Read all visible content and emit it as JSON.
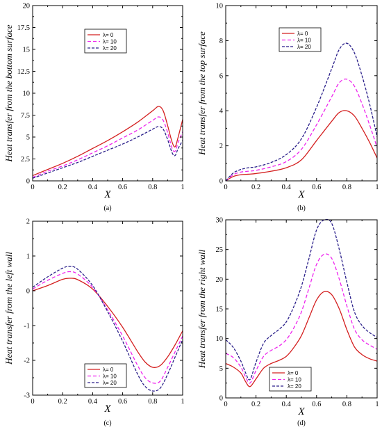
{
  "colors": {
    "lambda0": "#d42020",
    "lambda10": "#ee22ee",
    "lambda20": "#2a1f8a"
  },
  "chart_data": [
    {
      "type": "line",
      "caption": "(a)",
      "xlabel": "X",
      "ylabel": "Heat transfer from the bottom surface",
      "xlim": [
        0,
        1
      ],
      "ylim": [
        0,
        20
      ],
      "xticks": [
        "0",
        "0.2",
        "0.4",
        "0.6",
        "0.8",
        "1"
      ],
      "yticks": [
        "0",
        "2.5",
        "5",
        "7.5",
        "10",
        "12.5",
        "15",
        "17.5",
        "20"
      ],
      "x": [
        0,
        0.1,
        0.2,
        0.3,
        0.4,
        0.5,
        0.6,
        0.7,
        0.8,
        0.84,
        0.87,
        0.9,
        0.93,
        0.95,
        0.97,
        1.0
      ],
      "series": [
        {
          "name": "λ= 0",
          "values": [
            0.6,
            1.3,
            2.0,
            2.8,
            3.7,
            4.6,
            5.6,
            6.7,
            8.0,
            8.5,
            8.0,
            6.3,
            4.4,
            3.9,
            5.0,
            7.0
          ]
        },
        {
          "name": "λ= 10",
          "values": [
            0.4,
            1.1,
            1.7,
            2.4,
            3.2,
            4.0,
            4.9,
            5.8,
            6.9,
            7.3,
            6.9,
            5.5,
            3.7,
            3.4,
            4.4,
            5.6
          ]
        },
        {
          "name": "λ= 20",
          "values": [
            0.3,
            0.9,
            1.5,
            2.1,
            2.8,
            3.5,
            4.2,
            5.0,
            5.9,
            6.2,
            5.9,
            4.7,
            3.2,
            2.9,
            3.7,
            4.6
          ]
        }
      ],
      "legend": "upper-center"
    },
    {
      "type": "line",
      "caption": "(b)",
      "xlabel": "X",
      "ylabel": "Heat transfer from the top surface",
      "xlim": [
        0,
        1
      ],
      "ylim": [
        0,
        10
      ],
      "xticks": [
        "0",
        "0.2",
        "0.4",
        "0.6",
        "0.8",
        "1"
      ],
      "yticks": [
        "0",
        "2",
        "4",
        "6",
        "8",
        "10"
      ],
      "x": [
        0,
        0.05,
        0.1,
        0.15,
        0.2,
        0.3,
        0.4,
        0.5,
        0.6,
        0.7,
        0.75,
        0.8,
        0.85,
        0.9,
        0.95,
        1.0
      ],
      "series": [
        {
          "name": "λ= 0",
          "values": [
            0.0,
            0.25,
            0.35,
            0.38,
            0.42,
            0.55,
            0.75,
            1.2,
            2.3,
            3.4,
            3.9,
            4.0,
            3.7,
            3.0,
            2.2,
            1.3
          ]
        },
        {
          "name": "λ= 10",
          "values": [
            0.0,
            0.35,
            0.5,
            0.55,
            0.6,
            0.8,
            1.1,
            1.8,
            3.2,
            4.8,
            5.6,
            5.8,
            5.4,
            4.4,
            3.2,
            1.9
          ]
        },
        {
          "name": "λ= 20",
          "values": [
            0.0,
            0.45,
            0.65,
            0.75,
            0.8,
            1.05,
            1.5,
            2.4,
            4.2,
            6.4,
            7.5,
            7.85,
            7.3,
            6.0,
            4.4,
            2.5
          ]
        }
      ],
      "legend": "upper-left"
    },
    {
      "type": "line",
      "caption": "(c)",
      "xlabel": "X",
      "ylabel": "Heat transfer from the left wall",
      "xlim": [
        0,
        1
      ],
      "ylim": [
        -3,
        2
      ],
      "xticks": [
        "0",
        "0.2",
        "0.4",
        "0.6",
        "0.8",
        "1"
      ],
      "yticks": [
        "-3",
        "-2",
        "-1",
        "0",
        "1",
        "2"
      ],
      "x": [
        0,
        0.1,
        0.2,
        0.25,
        0.3,
        0.4,
        0.5,
        0.6,
        0.7,
        0.75,
        0.8,
        0.85,
        0.9,
        0.95,
        1.0
      ],
      "series": [
        {
          "name": "λ= 0",
          "values": [
            0.0,
            0.15,
            0.33,
            0.36,
            0.32,
            0.05,
            -0.45,
            -1.05,
            -1.75,
            -2.05,
            -2.2,
            -2.15,
            -1.9,
            -1.55,
            -1.15
          ]
        },
        {
          "name": "λ= 10",
          "values": [
            0.05,
            0.3,
            0.5,
            0.55,
            0.48,
            0.1,
            -0.55,
            -1.3,
            -2.15,
            -2.5,
            -2.65,
            -2.6,
            -2.2,
            -1.75,
            -1.3
          ]
        },
        {
          "name": "λ= 20",
          "values": [
            0.1,
            0.4,
            0.65,
            0.7,
            0.62,
            0.15,
            -0.6,
            -1.45,
            -2.4,
            -2.75,
            -2.88,
            -2.8,
            -2.4,
            -1.9,
            -1.4
          ]
        }
      ],
      "legend": "lower-left"
    },
    {
      "type": "line",
      "caption": "(d)",
      "xlabel": "X",
      "ylabel": "Heat transfer from the right wall",
      "xlim": [
        0,
        1
      ],
      "ylim": [
        0,
        30
      ],
      "xticks": [
        "0",
        "0.2",
        "0.4",
        "0.6",
        "0.8",
        "1"
      ],
      "yticks": [
        "0",
        "5",
        "10",
        "15",
        "20",
        "25",
        "30"
      ],
      "x": [
        0,
        0.05,
        0.1,
        0.13,
        0.16,
        0.2,
        0.25,
        0.3,
        0.35,
        0.4,
        0.45,
        0.5,
        0.55,
        0.6,
        0.65,
        0.7,
        0.75,
        0.8,
        0.85,
        0.9,
        0.95,
        1.0
      ],
      "series": [
        {
          "name": "λ= 0",
          "values": [
            5.8,
            5.2,
            4.2,
            2.8,
            1.9,
            3.2,
            5.0,
            5.8,
            6.3,
            7.0,
            8.5,
            10.5,
            13.5,
            16.5,
            17.9,
            17.4,
            15.0,
            11.5,
            8.6,
            7.3,
            6.6,
            6.2
          ]
        },
        {
          "name": "λ= 10",
          "values": [
            7.5,
            6.8,
            5.2,
            3.6,
            2.5,
            4.6,
            7.0,
            8.0,
            8.7,
            9.8,
            11.8,
            14.5,
            18.5,
            22.5,
            24.2,
            23.5,
            20.0,
            15.5,
            11.6,
            9.8,
            8.9,
            8.2
          ]
        },
        {
          "name": "λ= 20",
          "values": [
            9.8,
            8.5,
            6.2,
            4.3,
            3.1,
            6.0,
            9.2,
            10.5,
            11.5,
            12.8,
            15.4,
            18.8,
            23.5,
            28.3,
            30.0,
            29.4,
            25.0,
            19.5,
            14.5,
            12.2,
            11.0,
            10.2
          ]
        }
      ],
      "legend": "lower-right"
    }
  ]
}
